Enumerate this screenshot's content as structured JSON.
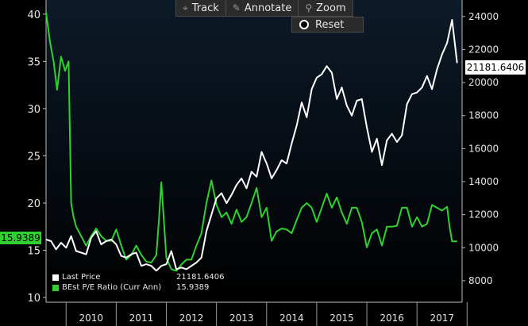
{
  "toolbar": {
    "track_label": "Track",
    "annotate_label": "Annotate",
    "zoom_label": "Zoom",
    "reset_label": "Reset"
  },
  "legend": {
    "last_price_name": "Last Price",
    "last_price_value": "21181.6406",
    "pe_name": "BEst P/E Ratio (Curr Ann)",
    "pe_value": "15.9389"
  },
  "tags": {
    "left_value": "15.9389",
    "right_value": "21181.6406"
  },
  "colors": {
    "price": "#ffffff",
    "pe": "#2fd12f",
    "background_top": "#0d1a28",
    "background_bottom": "#000000"
  },
  "chart_data": {
    "type": "line",
    "x_tick_labels": [
      "2010",
      "2011",
      "2012",
      "2013",
      "2014",
      "2015",
      "2016",
      "2017"
    ],
    "xlim": [
      2009.6,
      2017.9
    ],
    "left_axis": {
      "ticks": [
        10,
        15,
        20,
        25,
        30,
        35,
        40
      ],
      "ylim": [
        9.5,
        41.5
      ]
    },
    "right_axis": {
      "ticks": [
        8000,
        10000,
        12000,
        14000,
        16000,
        18000,
        20000,
        22000,
        24000
      ],
      "ylim": [
        6700,
        25000
      ]
    },
    "grid": false,
    "legend_position": "bottom-left",
    "series": [
      {
        "name": "Last Price",
        "axis": "right",
        "x": [
          2009.6,
          2009.7,
          2009.8,
          2009.9,
          2010.0,
          2010.1,
          2010.2,
          2010.3,
          2010.4,
          2010.5,
          2010.6,
          2010.7,
          2010.8,
          2010.9,
          2011.0,
          2011.1,
          2011.2,
          2011.3,
          2011.4,
          2011.5,
          2011.6,
          2011.7,
          2011.8,
          2011.9,
          2012.0,
          2012.1,
          2012.2,
          2012.3,
          2012.4,
          2012.5,
          2012.6,
          2012.7,
          2012.8,
          2012.9,
          2013.0,
          2013.1,
          2013.2,
          2013.3,
          2013.4,
          2013.5,
          2013.6,
          2013.7,
          2013.8,
          2013.9,
          2014.0,
          2014.1,
          2014.2,
          2014.3,
          2014.4,
          2014.5,
          2014.6,
          2014.7,
          2014.8,
          2014.9,
          2015.0,
          2015.1,
          2015.2,
          2015.3,
          2015.4,
          2015.5,
          2015.6,
          2015.7,
          2015.8,
          2015.9,
          2016.0,
          2016.1,
          2016.2,
          2016.3,
          2016.4,
          2016.5,
          2016.6,
          2016.7,
          2016.8,
          2016.9,
          2017.0,
          2017.1,
          2017.2,
          2017.3,
          2017.4,
          2017.5,
          2017.6,
          2017.7,
          2017.8
        ],
        "values": [
          10500,
          10400,
          9900,
          10300,
          10000,
          10700,
          9800,
          9700,
          9600,
          10600,
          11000,
          10200,
          10400,
          10500,
          10200,
          9500,
          9400,
          9600,
          9700,
          8900,
          9000,
          8900,
          8600,
          8900,
          9000,
          9800,
          8700,
          8800,
          8700,
          8900,
          9100,
          9400,
          11000,
          12000,
          13000,
          13300,
          12700,
          13200,
          13800,
          14200,
          13600,
          14600,
          14300,
          15800,
          15100,
          14200,
          14700,
          15300,
          15100,
          16300,
          17400,
          18800,
          17900,
          19600,
          20300,
          20500,
          21000,
          20600,
          19000,
          19700,
          18600,
          18000,
          18900,
          19000,
          17300,
          15800,
          16600,
          15000,
          16500,
          16900,
          16400,
          16800,
          18700,
          19300,
          19400,
          19700,
          20400,
          19600,
          20800,
          21700,
          22400,
          23800,
          21181.64
        ]
      },
      {
        "name": "BEst P/E Ratio (Curr Ann)",
        "axis": "left",
        "x": [
          2009.6,
          2009.68,
          2009.75,
          2009.82,
          2009.9,
          2009.98,
          2010.05,
          2010.1,
          2010.15,
          2010.2,
          2010.3,
          2010.4,
          2010.5,
          2010.6,
          2010.7,
          2010.8,
          2010.9,
          2011.0,
          2011.1,
          2011.2,
          2011.3,
          2011.4,
          2011.5,
          2011.6,
          2011.7,
          2011.8,
          2011.85,
          2011.9,
          2012.0,
          2012.1,
          2012.2,
          2012.3,
          2012.4,
          2012.5,
          2012.6,
          2012.7,
          2012.8,
          2012.9,
          2013.0,
          2013.1,
          2013.2,
          2013.3,
          2013.4,
          2013.5,
          2013.6,
          2013.7,
          2013.8,
          2013.9,
          2014.0,
          2014.1,
          2014.2,
          2014.3,
          2014.4,
          2014.5,
          2014.6,
          2014.7,
          2014.8,
          2014.9,
          2015.0,
          2015.1,
          2015.2,
          2015.3,
          2015.4,
          2015.5,
          2015.6,
          2015.7,
          2015.8,
          2015.9,
          2016.0,
          2016.1,
          2016.2,
          2016.3,
          2016.4,
          2016.5,
          2016.6,
          2016.7,
          2016.8,
          2016.9,
          2017.0,
          2017.1,
          2017.2,
          2017.3,
          2017.4,
          2017.5,
          2017.6,
          2017.65,
          2017.7,
          2017.8
        ],
        "values": [
          40.2,
          37,
          35,
          32,
          35.5,
          34,
          35,
          20,
          18.5,
          17.5,
          16.5,
          15.5,
          16.5,
          17.3,
          16.5,
          16,
          16,
          17.2,
          15.5,
          14,
          14.5,
          15.5,
          14.5,
          13.8,
          13.7,
          14.5,
          18,
          22.2,
          14.2,
          13,
          12.8,
          13.5,
          14,
          14,
          15.5,
          16.8,
          20,
          22.4,
          19.8,
          18.5,
          19,
          17.8,
          19.3,
          18,
          18.5,
          20,
          21.6,
          18.5,
          19.5,
          16,
          17,
          17.3,
          17.2,
          16.8,
          18.2,
          19.5,
          20,
          19.5,
          18,
          19.5,
          21,
          19.5,
          20.6,
          19,
          17.8,
          19.5,
          19.5,
          18,
          15.3,
          16.8,
          17.2,
          15.5,
          17.5,
          17.5,
          17.6,
          19.5,
          19.5,
          17.5,
          18.5,
          17.5,
          17.8,
          19.8,
          19.5,
          19.2,
          19.6,
          17.5,
          15.94,
          15.94
        ]
      }
    ]
  }
}
